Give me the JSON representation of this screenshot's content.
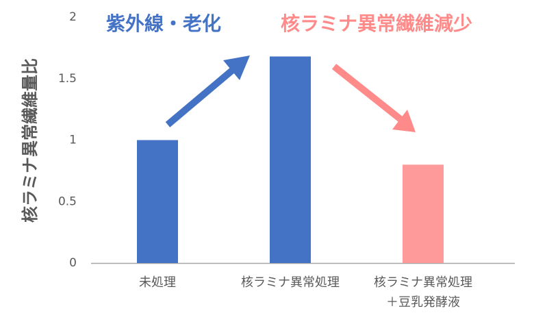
{
  "chart_data": {
    "type": "bar",
    "y_label": "核ラミナ異常繊維量比",
    "categories": [
      "未処理",
      "核ラミナ異常処理",
      "核ラミナ異常処理\n＋豆乳発酵液"
    ],
    "values": [
      1,
      1.68,
      0.8
    ],
    "colors": [
      "#4472c4",
      "#4472c4",
      "#ff9a9a"
    ],
    "ylim": [
      0,
      2
    ],
    "yticks": [
      0,
      0.5,
      1,
      1.5,
      2
    ],
    "grid": false,
    "annotations": [
      {
        "text": "紫外線・老化",
        "color": "#4472c4"
      },
      {
        "text": "核ラミナ異常繊維減少",
        "color": "#ff8a8a"
      }
    ]
  }
}
